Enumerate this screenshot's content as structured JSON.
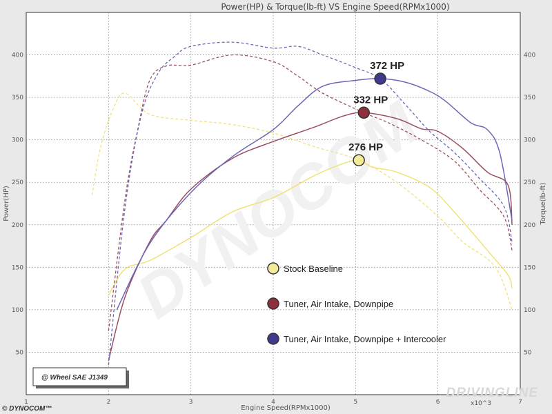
{
  "chart_data": {
    "type": "line",
    "title": "Power(HP) & Torque(lb-ft) VS Engine Speed(RPMx1000)",
    "xlabel": "Engine Speed(RPMx1000)",
    "ylabel": "Power(HP)",
    "ylabel_right": "Torque(lb-ft)",
    "x_multiplier_label": "x10^3",
    "xlim": [
      1,
      7
    ],
    "ylim": [
      0,
      450
    ],
    "x_ticks": [
      "1",
      "2",
      "3",
      "4",
      "5",
      "6",
      "7"
    ],
    "y_ticks": [
      "50",
      "100",
      "150",
      "200",
      "250",
      "300",
      "350",
      "400"
    ],
    "grid": true,
    "badge": "@ Wheel SAE J1349",
    "brand": "© DYNOCOM™",
    "watermark": "DYNOCOM",
    "credit": "DRIVINGLINE",
    "series": [
      {
        "name": "Stock Baseline",
        "color": "#f0e27a",
        "marker_color": "#f3ea9a",
        "peak_label": "276 HP",
        "peak": {
          "x": 5.04,
          "y": 276
        },
        "power": [
          [
            2.0,
            117
          ],
          [
            2.2,
            148
          ],
          [
            2.5,
            158
          ],
          [
            3.0,
            185
          ],
          [
            3.5,
            215
          ],
          [
            4.0,
            232
          ],
          [
            4.5,
            258
          ],
          [
            4.85,
            272
          ],
          [
            5.04,
            276
          ],
          [
            5.2,
            268
          ],
          [
            5.5,
            262
          ],
          [
            5.9,
            244
          ],
          [
            6.2,
            215
          ],
          [
            6.6,
            170
          ],
          [
            6.85,
            141
          ],
          [
            6.9,
            125
          ]
        ],
        "torque": [
          [
            1.8,
            235
          ],
          [
            1.9,
            290
          ],
          [
            2.05,
            335
          ],
          [
            2.2,
            355
          ],
          [
            2.5,
            330
          ],
          [
            3.0,
            323
          ],
          [
            3.5,
            318
          ],
          [
            4.0,
            308
          ],
          [
            4.5,
            292
          ],
          [
            5.04,
            276
          ],
          [
            5.5,
            250
          ],
          [
            6.0,
            210
          ],
          [
            6.3,
            180
          ],
          [
            6.7,
            150
          ],
          [
            6.9,
            100
          ]
        ]
      },
      {
        "name": "Tuner, Air Intake, Downpipe",
        "color": "#9b5060",
        "marker_color": "#8e2f3c",
        "peak_label": "332 HP",
        "peak": {
          "x": 5.1,
          "y": 332
        },
        "power": [
          [
            2.0,
            40
          ],
          [
            2.2,
            115
          ],
          [
            2.5,
            180
          ],
          [
            2.7,
            205
          ],
          [
            3.0,
            242
          ],
          [
            3.5,
            278
          ],
          [
            4.0,
            298
          ],
          [
            4.5,
            315
          ],
          [
            4.85,
            328
          ],
          [
            5.1,
            332
          ],
          [
            5.5,
            325
          ],
          [
            5.8,
            313
          ],
          [
            6.0,
            310
          ],
          [
            6.3,
            290
          ],
          [
            6.6,
            262
          ],
          [
            6.85,
            247
          ],
          [
            6.9,
            200
          ]
        ],
        "torque": [
          [
            2.0,
            75
          ],
          [
            2.2,
            230
          ],
          [
            2.35,
            310
          ],
          [
            2.5,
            370
          ],
          [
            2.7,
            387
          ],
          [
            3.0,
            388
          ],
          [
            3.5,
            400
          ],
          [
            4.0,
            392
          ],
          [
            4.3,
            375
          ],
          [
            4.6,
            355
          ],
          [
            5.1,
            332
          ],
          [
            5.4,
            320
          ],
          [
            5.8,
            300
          ],
          [
            6.2,
            275
          ],
          [
            6.5,
            242
          ],
          [
            6.8,
            210
          ],
          [
            6.9,
            170
          ]
        ]
      },
      {
        "name": "Tuner, Air Intake, Downpipe + Intercooler",
        "color": "#6a66b8",
        "marker_color": "#3f3a8c",
        "peak_label": "372 HP",
        "peak": {
          "x": 5.3,
          "y": 372
        },
        "power": [
          [
            2.1,
            100
          ],
          [
            2.5,
            178
          ],
          [
            3.0,
            238
          ],
          [
            3.5,
            280
          ],
          [
            4.0,
            312
          ],
          [
            4.3,
            340
          ],
          [
            4.6,
            363
          ],
          [
            5.0,
            370
          ],
          [
            5.3,
            372
          ],
          [
            5.6,
            368
          ],
          [
            5.9,
            357
          ],
          [
            6.1,
            345
          ],
          [
            6.4,
            320
          ],
          [
            6.6,
            312
          ],
          [
            6.75,
            285
          ],
          [
            6.9,
            205
          ]
        ],
        "torque": [
          [
            2.0,
            35
          ],
          [
            2.2,
            220
          ],
          [
            2.4,
            330
          ],
          [
            2.6,
            378
          ],
          [
            2.8,
            398
          ],
          [
            3.0,
            410
          ],
          [
            3.5,
            415
          ],
          [
            4.0,
            408
          ],
          [
            4.3,
            410
          ],
          [
            4.6,
            400
          ],
          [
            5.0,
            385
          ],
          [
            5.3,
            372
          ],
          [
            5.6,
            342
          ],
          [
            5.9,
            310
          ],
          [
            6.2,
            285
          ],
          [
            6.5,
            255
          ],
          [
            6.8,
            222
          ],
          [
            6.9,
            180
          ]
        ]
      }
    ]
  }
}
